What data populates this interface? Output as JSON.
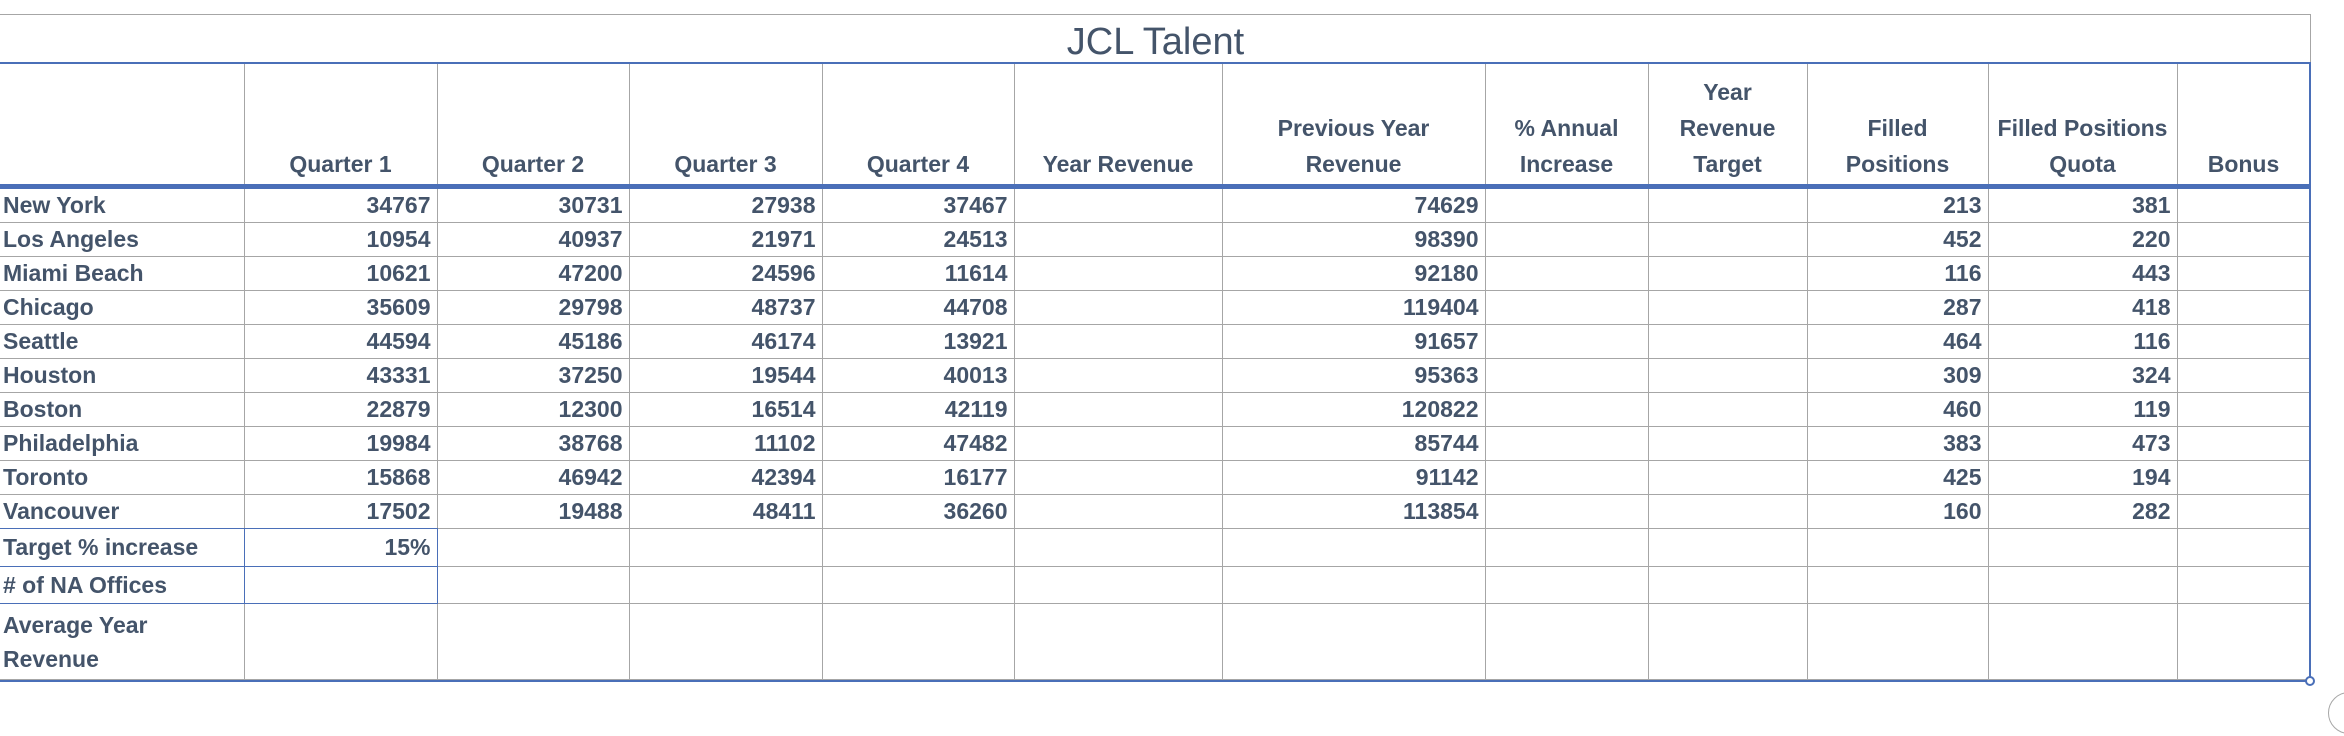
{
  "title": "JCL Talent",
  "headers": [
    "",
    "Quarter 1",
    "Quarter 2",
    "Quarter 3",
    "Quarter 4",
    "Year Revenue",
    "Previous Year Revenue",
    "% Annual Increase",
    "Year Revenue Target",
    "Filled Positions",
    "Filled Positions Quota",
    "Bonus"
  ],
  "rows": [
    {
      "city": "New York",
      "q1": "34767",
      "q2": "30731",
      "q3": "27938",
      "q4": "37467",
      "year_revenue": "",
      "previous_year_revenue": "74629",
      "annual_increase": "",
      "year_revenue_target": "",
      "filled_positions": "213",
      "filled_positions_quota": "381",
      "bonus": ""
    },
    {
      "city": "Los Angeles",
      "q1": "10954",
      "q2": "40937",
      "q3": "21971",
      "q4": "24513",
      "year_revenue": "",
      "previous_year_revenue": "98390",
      "annual_increase": "",
      "year_revenue_target": "",
      "filled_positions": "452",
      "filled_positions_quota": "220",
      "bonus": ""
    },
    {
      "city": "Miami Beach",
      "q1": "10621",
      "q2": "47200",
      "q3": "24596",
      "q4": "11614",
      "year_revenue": "",
      "previous_year_revenue": "92180",
      "annual_increase": "",
      "year_revenue_target": "",
      "filled_positions": "116",
      "filled_positions_quota": "443",
      "bonus": ""
    },
    {
      "city": "Chicago",
      "q1": "35609",
      "q2": "29798",
      "q3": "48737",
      "q4": "44708",
      "year_revenue": "",
      "previous_year_revenue": "119404",
      "annual_increase": "",
      "year_revenue_target": "",
      "filled_positions": "287",
      "filled_positions_quota": "418",
      "bonus": ""
    },
    {
      "city": "Seattle",
      "q1": "44594",
      "q2": "45186",
      "q3": "46174",
      "q4": "13921",
      "year_revenue": "",
      "previous_year_revenue": "91657",
      "annual_increase": "",
      "year_revenue_target": "",
      "filled_positions": "464",
      "filled_positions_quota": "116",
      "bonus": ""
    },
    {
      "city": "Houston",
      "q1": "43331",
      "q2": "37250",
      "q3": "19544",
      "q4": "40013",
      "year_revenue": "",
      "previous_year_revenue": "95363",
      "annual_increase": "",
      "year_revenue_target": "",
      "filled_positions": "309",
      "filled_positions_quota": "324",
      "bonus": ""
    },
    {
      "city": "Boston",
      "q1": "22879",
      "q2": "12300",
      "q3": "16514",
      "q4": "42119",
      "year_revenue": "",
      "previous_year_revenue": "120822",
      "annual_increase": "",
      "year_revenue_target": "",
      "filled_positions": "460",
      "filled_positions_quota": "119",
      "bonus": ""
    },
    {
      "city": "Philadelphia",
      "q1": "19984",
      "q2": "38768",
      "q3": "11102",
      "q4": "47482",
      "year_revenue": "",
      "previous_year_revenue": "85744",
      "annual_increase": "",
      "year_revenue_target": "",
      "filled_positions": "383",
      "filled_positions_quota": "473",
      "bonus": ""
    },
    {
      "city": "Toronto",
      "q1": "15868",
      "q2": "46942",
      "q3": "42394",
      "q4": "16177",
      "year_revenue": "",
      "previous_year_revenue": "91142",
      "annual_increase": "",
      "year_revenue_target": "",
      "filled_positions": "425",
      "filled_positions_quota": "194",
      "bonus": ""
    },
    {
      "city": "Vancouver",
      "q1": "17502",
      "q2": "19488",
      "q3": "48411",
      "q4": "36260",
      "year_revenue": "",
      "previous_year_revenue": "113854",
      "annual_increase": "",
      "year_revenue_target": "",
      "filled_positions": "160",
      "filled_positions_quota": "282",
      "bonus": ""
    }
  ],
  "summary": {
    "target_increase_label": "Target % increase",
    "target_increase_value": "15%",
    "na_offices_label": "# of NA Offices",
    "na_offices_value": "",
    "average_year_revenue_label": "Average Year Revenue",
    "average_year_revenue_value": ""
  }
}
